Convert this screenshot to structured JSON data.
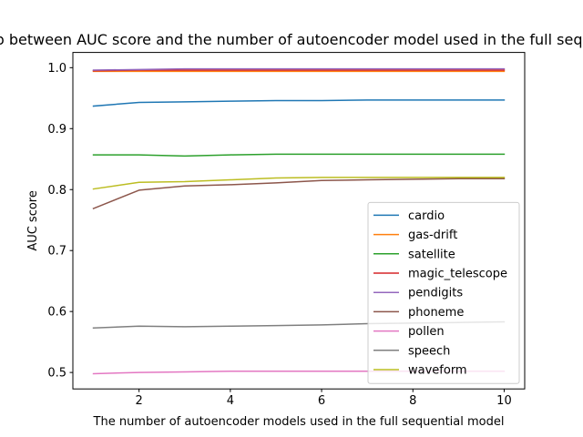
{
  "chart_data": {
    "type": "line",
    "title": "Relationship between AUC score and the number of autoencoder model used in the full sequential model",
    "xlabel": "The number of autoencoder models used in the full sequential model",
    "ylabel": "AUC score",
    "x": [
      1,
      2,
      3,
      4,
      5,
      6,
      7,
      8,
      9,
      10
    ],
    "xticks": [
      2,
      4,
      6,
      8,
      10
    ],
    "yticks": [
      0.5,
      0.6,
      0.7,
      0.8,
      0.9,
      1.0
    ],
    "ytick_labels": [
      "0.5",
      "0.6",
      "0.7",
      "0.8",
      "0.9",
      "1.0"
    ],
    "xlim": [
      0.55,
      10.45
    ],
    "ylim": [
      0.473,
      1.025
    ],
    "grid": false,
    "legend_position": "lower-right",
    "series": [
      {
        "name": "cardio",
        "color": "#1f77b4",
        "values": [
          0.937,
          0.943,
          0.944,
          0.945,
          0.946,
          0.946,
          0.947,
          0.947,
          0.947,
          0.947
        ]
      },
      {
        "name": "gas-drift",
        "color": "#ff7f0e",
        "values": [
          0.994,
          0.994,
          0.994,
          0.994,
          0.994,
          0.994,
          0.994,
          0.994,
          0.994,
          0.994
        ]
      },
      {
        "name": "satellite",
        "color": "#2ca02c",
        "values": [
          0.857,
          0.857,
          0.855,
          0.857,
          0.858,
          0.858,
          0.858,
          0.858,
          0.858,
          0.858
        ]
      },
      {
        "name": "magic_telescope",
        "color": "#d62728",
        "values": [
          0.995,
          0.996,
          0.996,
          0.996,
          0.996,
          0.996,
          0.996,
          0.996,
          0.996,
          0.996
        ]
      },
      {
        "name": "pendigits",
        "color": "#9467bd",
        "values": [
          0.996,
          0.997,
          0.998,
          0.998,
          0.998,
          0.998,
          0.998,
          0.998,
          0.998,
          0.998
        ]
      },
      {
        "name": "phoneme",
        "color": "#8c564b",
        "values": [
          0.769,
          0.799,
          0.806,
          0.808,
          0.811,
          0.815,
          0.816,
          0.817,
          0.818,
          0.818
        ]
      },
      {
        "name": "pollen",
        "color": "#e377c2",
        "values": [
          0.498,
          0.5,
          0.501,
          0.502,
          0.502,
          0.502,
          0.502,
          0.502,
          0.502,
          0.502
        ]
      },
      {
        "name": "speech",
        "color": "#7f7f7f",
        "values": [
          0.573,
          0.576,
          0.575,
          0.576,
          0.577,
          0.578,
          0.58,
          0.581,
          0.582,
          0.583
        ]
      },
      {
        "name": "waveform",
        "color": "#bcbd22",
        "values": [
          0.801,
          0.812,
          0.813,
          0.816,
          0.819,
          0.82,
          0.82,
          0.82,
          0.82,
          0.82
        ]
      }
    ]
  }
}
